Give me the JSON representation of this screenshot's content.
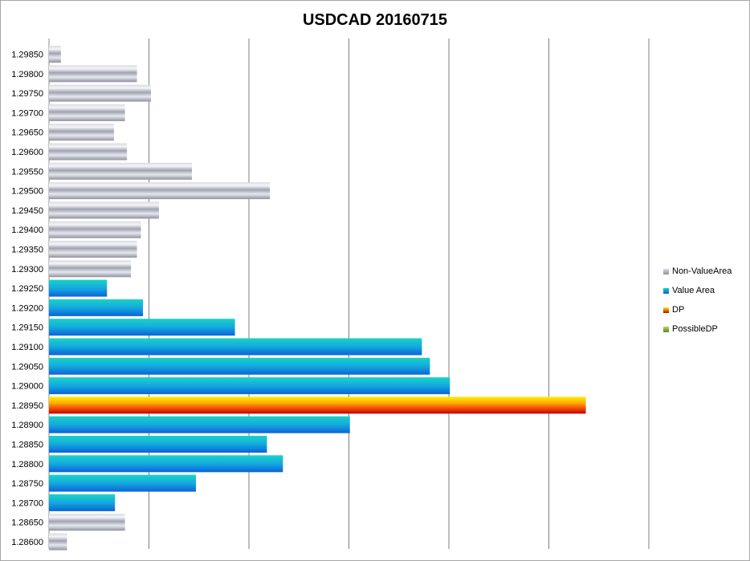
{
  "chart_data": {
    "type": "bar",
    "orientation": "horizontal",
    "title": "USDCAD 20160715",
    "xlabel": "",
    "ylabel": "",
    "xlim": [
      0,
      60
    ],
    "x_gridlines": [
      0,
      10,
      20,
      30,
      40,
      50,
      60
    ],
    "grid": true,
    "legend_position": "right",
    "categories": [
      "1.29850",
      "1.29800",
      "1.29750",
      "1.29700",
      "1.29650",
      "1.29600",
      "1.29550",
      "1.29500",
      "1.29450",
      "1.29400",
      "1.29350",
      "1.29300",
      "1.29250",
      "1.29200",
      "1.29150",
      "1.29100",
      "1.29050",
      "1.29000",
      "1.28950",
      "1.28900",
      "1.28850",
      "1.28800",
      "1.28750",
      "1.28700",
      "1.28650",
      "1.28600"
    ],
    "series": [
      {
        "name": "Non-ValueArea",
        "color": "#a6a9b4",
        "values": [
          1.2,
          8.8,
          10.2,
          7.6,
          6.5,
          7.8,
          14.3,
          22.1,
          11.0,
          9.2,
          8.8,
          8.2,
          null,
          null,
          null,
          null,
          null,
          null,
          null,
          null,
          null,
          null,
          null,
          null,
          7.6,
          1.8
        ]
      },
      {
        "name": "Value Area",
        "color": "#1e9fd8",
        "values": [
          null,
          null,
          null,
          null,
          null,
          null,
          null,
          null,
          null,
          null,
          null,
          null,
          5.8,
          9.4,
          18.6,
          37.3,
          38.1,
          40.1,
          null,
          30.1,
          21.8,
          23.4,
          14.7,
          6.6,
          null,
          null
        ]
      },
      {
        "name": "DP",
        "color": "#f26b0c",
        "values": [
          null,
          null,
          null,
          null,
          null,
          null,
          null,
          null,
          null,
          null,
          null,
          null,
          null,
          null,
          null,
          null,
          null,
          null,
          53.7,
          null,
          null,
          null,
          null,
          null,
          null,
          null
        ]
      },
      {
        "name": "PossibleDP",
        "color": "#7ea63a",
        "values": [
          null,
          null,
          null,
          null,
          null,
          null,
          null,
          null,
          null,
          null,
          null,
          null,
          null,
          null,
          null,
          null,
          null,
          null,
          null,
          null,
          null,
          null,
          null,
          null,
          null,
          null
        ]
      }
    ]
  }
}
